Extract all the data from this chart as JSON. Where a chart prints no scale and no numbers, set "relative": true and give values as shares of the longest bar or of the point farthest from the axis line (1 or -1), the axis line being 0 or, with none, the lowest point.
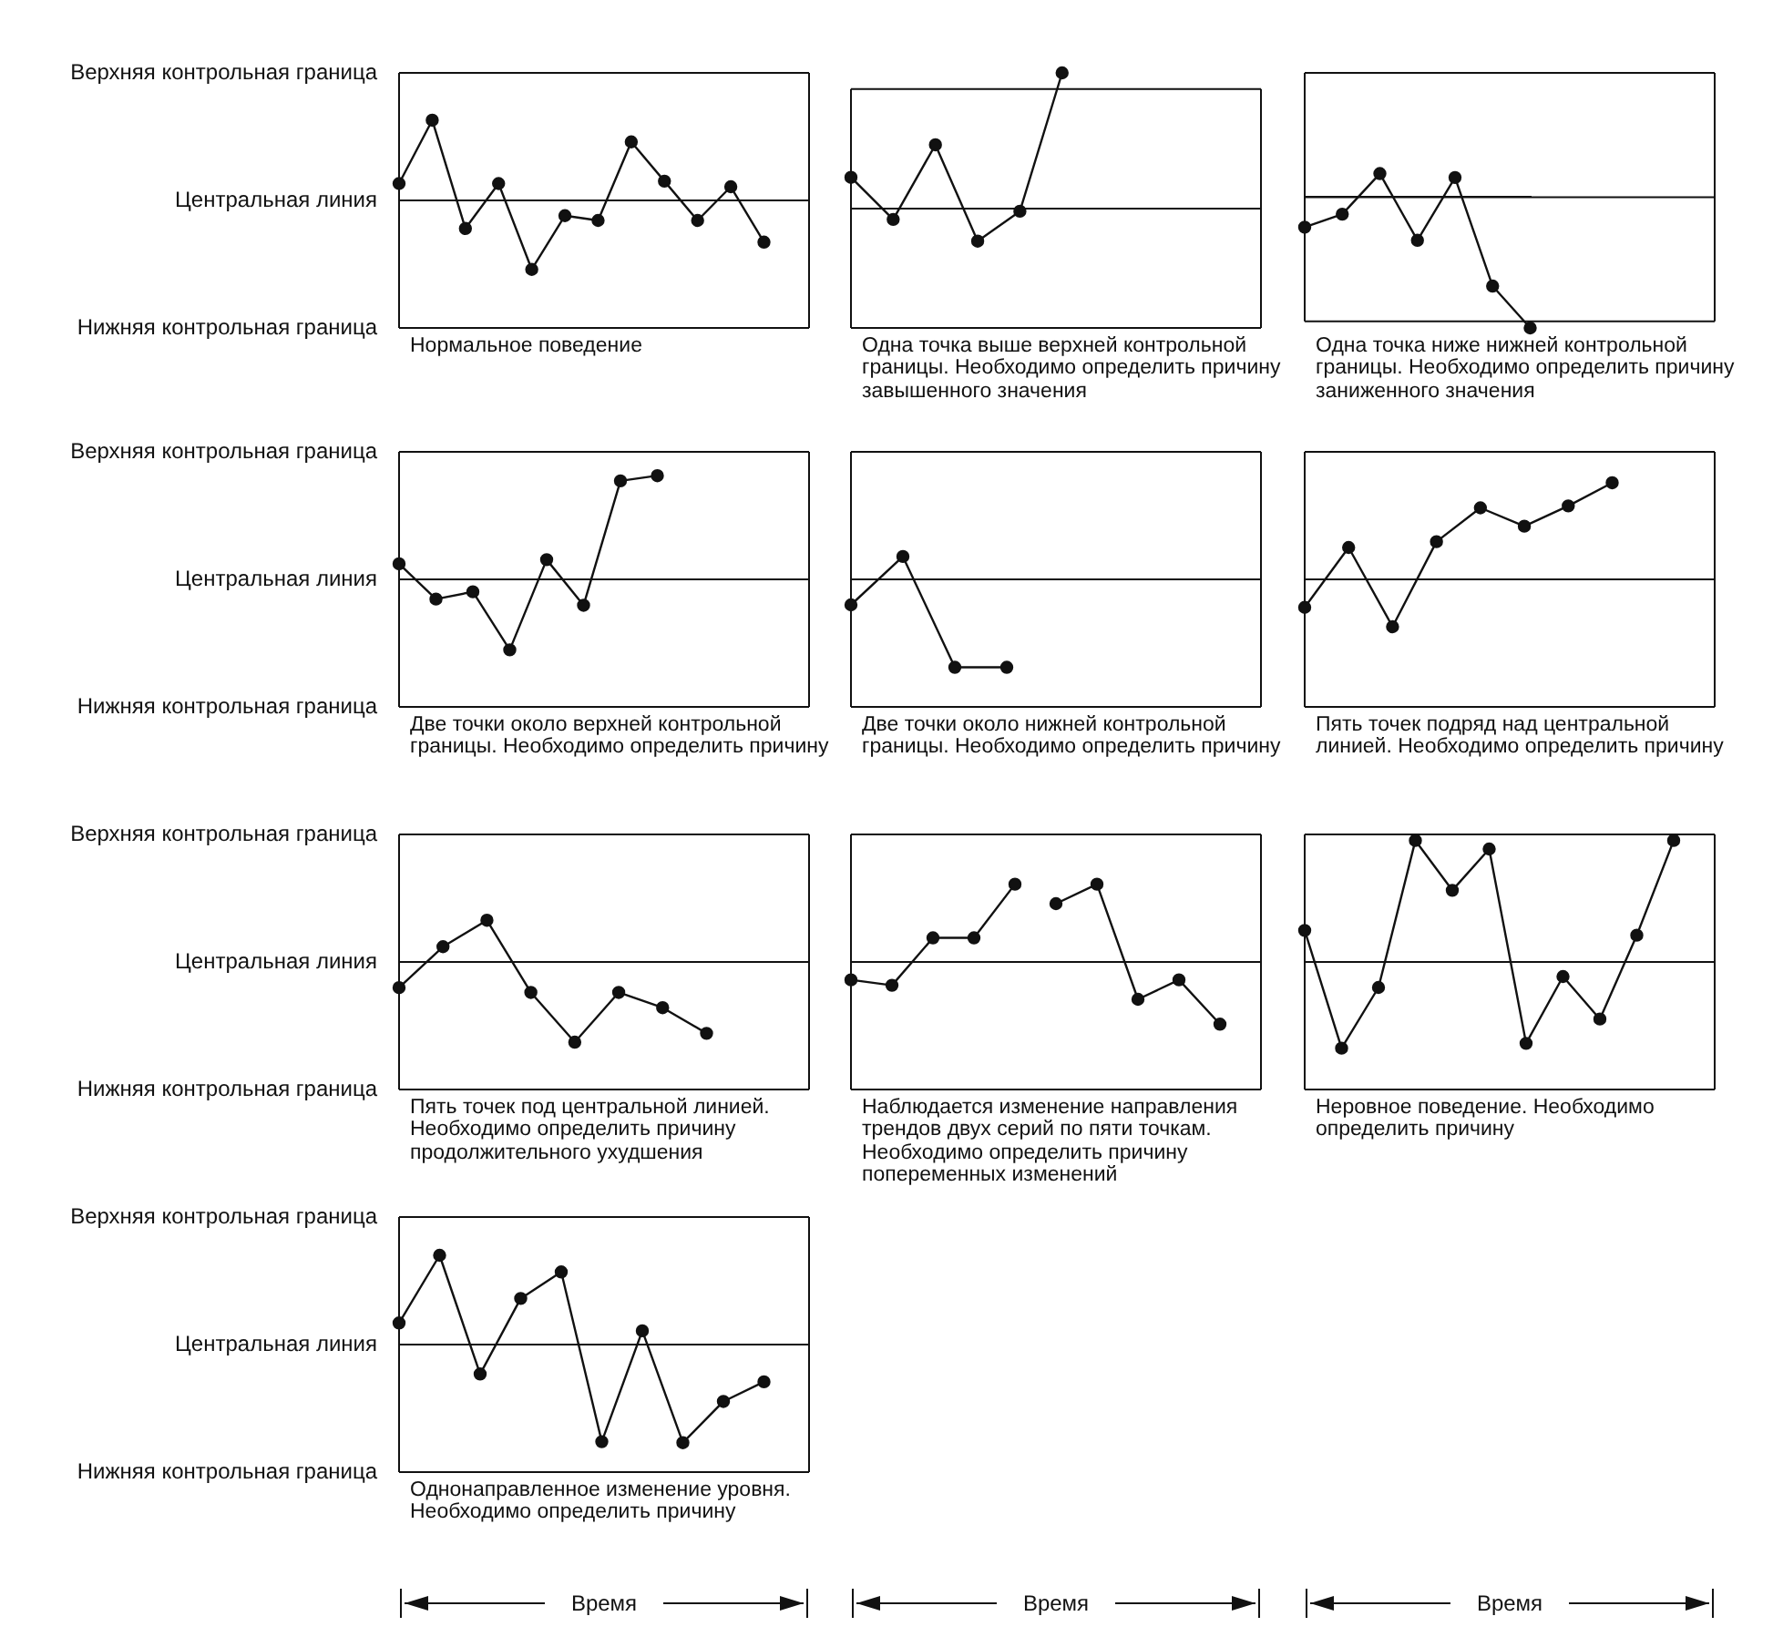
{
  "chart_data": [
    {
      "type": "line",
      "relative": true,
      "categories": [
        null,
        null,
        null,
        null,
        null,
        null,
        null,
        null,
        null,
        null,
        null,
        null
      ],
      "values": [
        0.21,
        1,
        -0.35,
        0.21,
        -0.86,
        -0.19,
        -0.25,
        0.73,
        0.24,
        -0.25,
        0.17,
        -0.52
      ],
      "color": "#111111",
      "marker": "circle",
      "ref_lines": [
        {
          "axis": "y",
          "value": 1.59,
          "label": "Верхняя контрольная граница"
        },
        {
          "axis": "y",
          "value": 0,
          "label": "Центральная линия"
        },
        {
          "axis": "y",
          "value": -1.59,
          "label": "Нижняя контрольная граница"
        }
      ],
      "annotations": [
        "Нормальное поведение"
      ]
    },
    {
      "type": "line",
      "relative": true,
      "categories": [
        null,
        null,
        null,
        null,
        null,
        null
      ],
      "values": [
        0.23,
        -0.08,
        0.47,
        -0.24,
        -0.02,
        1
      ],
      "color": "#111111",
      "marker": "circle",
      "ref_lines": [
        {
          "axis": "y",
          "value": 0.88
        },
        {
          "axis": "y",
          "value": 0
        },
        {
          "axis": "y",
          "value": -0.88
        }
      ],
      "annotations": [
        "Одна точка выше верхней контрольной границы. Необходимо определить причину завышенного значения"
      ]
    },
    {
      "type": "line",
      "relative": true,
      "categories": [
        null,
        null,
        null,
        null,
        null,
        null,
        null
      ],
      "values": [
        -0.23,
        -0.13,
        0.18,
        -0.33,
        0.15,
        -0.68,
        -1
      ],
      "color": "#111111",
      "marker": "circle",
      "ref_lines": [
        {
          "axis": "y",
          "value": 0.95
        },
        {
          "axis": "y",
          "value": 0
        },
        {
          "axis": "y",
          "value": -0.95
        }
      ],
      "annotations": [
        "Одна точка ниже нижней контрольной границы. Необходимо определить причину заниженного значения"
      ]
    },
    {
      "type": "line",
      "relative": true,
      "categories": [
        null,
        null,
        null,
        null,
        null,
        null,
        null,
        null
      ],
      "values": [
        0.15,
        -0.19,
        -0.12,
        -0.68,
        0.19,
        -0.25,
        0.95,
        1
      ],
      "color": "#111111",
      "marker": "circle",
      "ref_lines": [
        {
          "axis": "y",
          "value": 1.23,
          "label": "Верхняя контрольная граница"
        },
        {
          "axis": "y",
          "value": 0,
          "label": "Центральная линия"
        },
        {
          "axis": "y",
          "value": -1.23,
          "label": "Нижняя контрольная граница"
        }
      ],
      "annotations": [
        "Две точки около верхней контрольной границы. Необходимо определить причину"
      ]
    },
    {
      "type": "line",
      "relative": true,
      "categories": [
        null,
        null,
        null,
        null
      ],
      "values": [
        -0.29,
        0.26,
        -1,
        -1
      ],
      "color": "#111111",
      "marker": "circle",
      "ref_lines": [
        {
          "axis": "y",
          "value": 1.45
        },
        {
          "axis": "y",
          "value": 0
        },
        {
          "axis": "y",
          "value": -1.45
        }
      ],
      "annotations": [
        "Две точки около нижней контрольной границы. Необходимо определить причину"
      ]
    },
    {
      "type": "line",
      "relative": true,
      "categories": [
        null,
        null,
        null,
        null,
        null,
        null,
        null,
        null
      ],
      "values": [
        -0.29,
        0.33,
        -0.49,
        0.39,
        0.74,
        0.55,
        0.76,
        1
      ],
      "color": "#111111",
      "marker": "circle",
      "ref_lines": [
        {
          "axis": "y",
          "value": 1.32
        },
        {
          "axis": "y",
          "value": 0
        },
        {
          "axis": "y",
          "value": -1.32
        }
      ],
      "annotations": [
        "Пять точек подряд над центральной линией. Необходимо определить причину"
      ]
    },
    {
      "type": "line",
      "relative": true,
      "categories": [
        null,
        null,
        null,
        null,
        null,
        null,
        null,
        null
      ],
      "values": [
        -0.32,
        0.19,
        0.52,
        -0.38,
        -1,
        -0.38,
        -0.57,
        -0.89
      ],
      "color": "#111111",
      "marker": "circle",
      "ref_lines": [
        {
          "axis": "y",
          "value": 1.59,
          "label": "Верхняя контрольная граница"
        },
        {
          "axis": "y",
          "value": 0,
          "label": "Центральная линия"
        },
        {
          "axis": "y",
          "value": -1.59,
          "label": "Нижняя контрольная граница"
        }
      ],
      "annotations": [
        "Пять точек под центральной линией. Необходимо определить причину продолжительного ухудшения"
      ]
    },
    {
      "type": "line",
      "relative": true,
      "categories": [
        null,
        null,
        null,
        null,
        null,
        null,
        null,
        null,
        null,
        null
      ],
      "series": [
        {
          "color": "#111111",
          "values": [
            -0.23,
            -0.3,
            0.31,
            0.31,
            1,
            null,
            null,
            null,
            null,
            null
          ]
        },
        {
          "color": "#111111",
          "values": [
            null,
            null,
            null,
            null,
            null,
            0.75,
            1,
            -0.48,
            -0.23,
            -0.8
          ]
        }
      ],
      "marker": "circle",
      "ref_lines": [
        {
          "axis": "y",
          "value": 1.64
        },
        {
          "axis": "y",
          "value": 0
        },
        {
          "axis": "y",
          "value": -1.64
        }
      ],
      "xlabel": "Время",
      "annotations": [
        "Наблюдается изменение направления трендов двух серий по пяти точкам. Необходимо определить причину попеременных изменений"
      ]
    },
    {
      "type": "line",
      "relative": true,
      "categories": [
        null,
        null,
        null,
        null,
        null,
        null,
        null,
        null,
        null,
        null,
        null
      ],
      "values": [
        0.26,
        -0.71,
        -0.21,
        1,
        0.59,
        0.93,
        -0.67,
        -0.12,
        -0.47,
        0.22,
        1
      ],
      "color": "#111111",
      "marker": "circle",
      "ref_lines": [
        {
          "axis": "y",
          "value": 1.05
        },
        {
          "axis": "y",
          "value": 0
        },
        {
          "axis": "y",
          "value": -1.05
        }
      ],
      "xlabel": "Время",
      "annotations": [
        "Неровное поведение. Необходимо определить причину"
      ]
    },
    {
      "type": "line",
      "relative": true,
      "categories": [
        null,
        null,
        null,
        null,
        null,
        null,
        null,
        null,
        null,
        null
      ],
      "values": [
        0.22,
        0.91,
        -0.3,
        0.47,
        0.74,
        -0.99,
        0.14,
        -1,
        -0.58,
        -0.38
      ],
      "color": "#111111",
      "marker": "circle",
      "ref_lines": [
        {
          "axis": "y",
          "value": 1.3,
          "label": "Верхняя контрольная граница"
        },
        {
          "axis": "y",
          "value": 0,
          "label": "Центральная линия"
        },
        {
          "axis": "y",
          "value": -1.3,
          "label": "Нижняя контрольная граница"
        }
      ],
      "xlabel": "Время",
      "annotations": [
        "Однонаправленное изменение уровня. Необходимо определить причину"
      ]
    }
  ]
}
